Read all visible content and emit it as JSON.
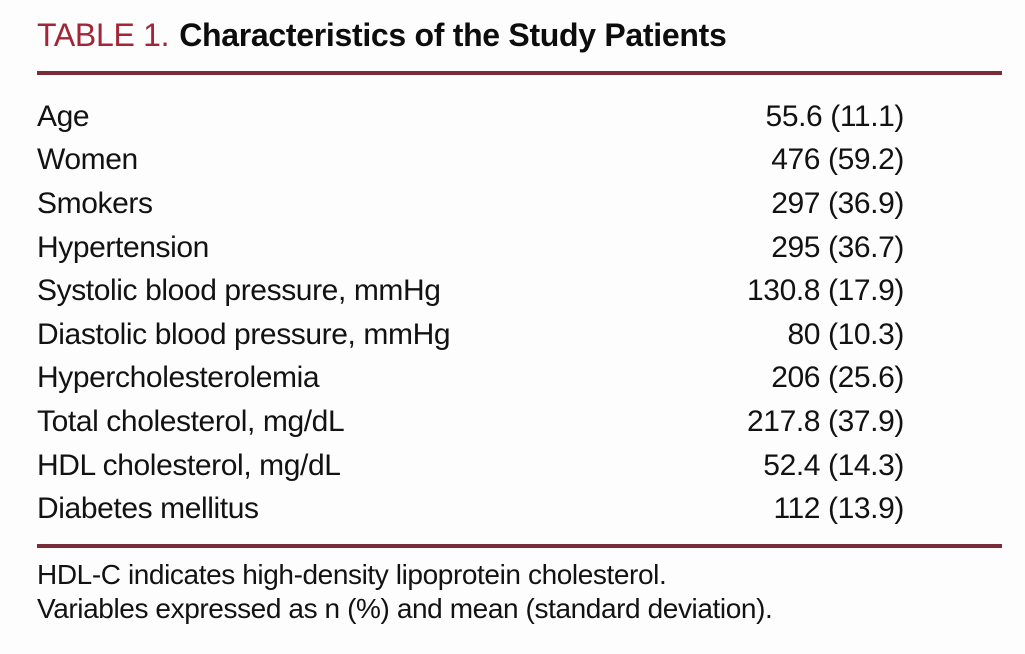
{
  "title": {
    "label": "TABLE 1.",
    "text": "Characteristics of the Study Patients"
  },
  "table": {
    "rows": [
      {
        "label": "Age",
        "value": "55.6 (11.1)"
      },
      {
        "label": "Women",
        "value": "476 (59.2)"
      },
      {
        "label": "Smokers",
        "value": "297 (36.9)"
      },
      {
        "label": "Hypertension",
        "value": "295 (36.7)"
      },
      {
        "label": "Systolic blood pressure, mmHg",
        "value": "130.8 (17.9)"
      },
      {
        "label": "Diastolic blood pressure, mmHg",
        "value": "80 (10.3)"
      },
      {
        "label": "Hypercholesterolemia",
        "value": "206 (25.6)"
      },
      {
        "label": "Total cholesterol, mg/dL",
        "value": "217.8 (37.9)"
      },
      {
        "label": "HDL cholesterol, mg/dL",
        "value": "52.4 (14.3)"
      },
      {
        "label": "Diabetes mellitus",
        "value": "112 (13.9)"
      }
    ]
  },
  "footnotes": [
    "HDL-C indicates high-density lipoprotein cholesterol.",
    "Variables expressed as n (%) and mean (standard deviation)."
  ],
  "colors": {
    "accent_red": "#A32638",
    "rule_maroon": "#7A2C3B",
    "text": "#121212",
    "background": "#fdfdfd"
  }
}
